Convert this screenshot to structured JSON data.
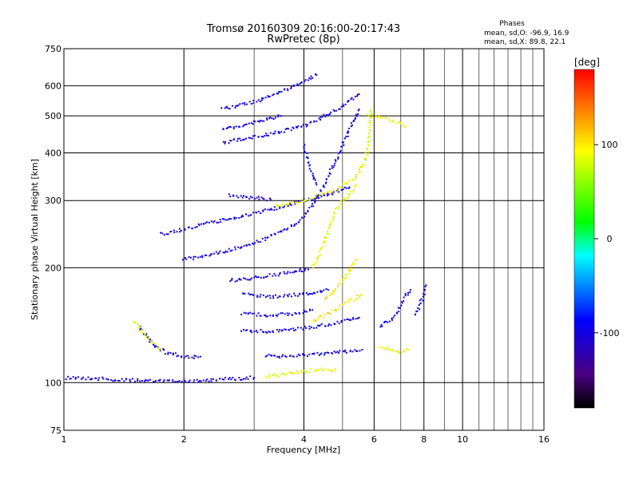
{
  "chart_data": {
    "type": "scatter",
    "title": "Tromsø 20160309 20:16:00-20:17:43",
    "subtitle": "RwPretec (8p)",
    "xlabel": "Frequency [MHz]",
    "ylabel": "Stationary phase Virtual Height [km]",
    "x_scale": "log",
    "y_scale": "log",
    "xlim": [
      1,
      16
    ],
    "ylim": [
      75,
      750
    ],
    "x_ticks": [
      1,
      2,
      4,
      6,
      8,
      10,
      16
    ],
    "y_ticks": [
      75,
      100,
      200,
      300,
      400,
      500,
      600,
      750
    ],
    "x_minor_grid": [
      3,
      5,
      7,
      9,
      11,
      12,
      13,
      14,
      15
    ],
    "grid": true,
    "phase_stats": {
      "heading": "Phases",
      "o_line": "mean, sd,O: -96.9, 16.9",
      "x_line": "mean, sd,X:  89.8, 22.1"
    },
    "colorbar": {
      "label": "[deg]",
      "range": [
        -180,
        180
      ],
      "ticks": [
        100,
        0,
        -100
      ],
      "colormap": "rainbow",
      "colors": [
        "#000000",
        "#4b0082",
        "#0000ff",
        "#00ffff",
        "#00ff00",
        "#ffff00",
        "#ff8000",
        "#ff0000"
      ]
    },
    "series": [
      {
        "trace": "o",
        "phase": -100,
        "points": [
          [
            1.0,
            103
          ],
          [
            1.1,
            103
          ],
          [
            1.3,
            102
          ],
          [
            1.6,
            101
          ],
          [
            2.0,
            101
          ],
          [
            2.5,
            102
          ],
          [
            3.0,
            103
          ]
        ]
      },
      {
        "trace": "x",
        "phase": 90,
        "points": [
          [
            3.2,
            104
          ],
          [
            3.6,
            105
          ],
          [
            4.0,
            107
          ],
          [
            4.4,
            108
          ],
          [
            4.8,
            108
          ]
        ]
      },
      {
        "trace": "o",
        "phase": -100,
        "points": [
          [
            1.55,
            140
          ],
          [
            1.65,
            128
          ],
          [
            1.8,
            120
          ],
          [
            2.0,
            117
          ],
          [
            2.2,
            117
          ]
        ]
      },
      {
        "trace": "x",
        "phase": 80,
        "points": [
          [
            1.5,
            145
          ],
          [
            1.6,
            132
          ],
          [
            1.75,
            122
          ]
        ]
      },
      {
        "trace": "o",
        "phase": -100,
        "points": [
          [
            1.75,
            245
          ],
          [
            2.0,
            252
          ],
          [
            2.3,
            262
          ],
          [
            2.8,
            272
          ],
          [
            3.2,
            282
          ],
          [
            3.6,
            290
          ],
          [
            4.0,
            300
          ],
          [
            4.6,
            312
          ],
          [
            5.2,
            325
          ]
        ]
      },
      {
        "trace": "x",
        "phase": 90,
        "points": [
          [
            3.4,
            290
          ],
          [
            3.8,
            296
          ],
          [
            4.2,
            305
          ],
          [
            4.8,
            320
          ],
          [
            5.4,
            345
          ],
          [
            5.7,
            380
          ],
          [
            5.8,
            420
          ],
          [
            5.85,
            470
          ],
          [
            5.9,
            520
          ]
        ]
      },
      {
        "trace": "o",
        "phase": -100,
        "points": [
          [
            2.5,
            520
          ],
          [
            3.0,
            545
          ],
          [
            3.5,
            575
          ],
          [
            3.9,
            610
          ],
          [
            4.3,
            640
          ]
        ]
      },
      {
        "trace": "o",
        "phase": -100,
        "points": [
          [
            2.5,
            460
          ],
          [
            3.0,
            480
          ],
          [
            3.5,
            500
          ]
        ]
      },
      {
        "trace": "o",
        "phase": -100,
        "points": [
          [
            2.5,
            425
          ],
          [
            3.0,
            440
          ],
          [
            3.5,
            455
          ],
          [
            4.0,
            470
          ],
          [
            4.5,
            500
          ],
          [
            5.0,
            530
          ],
          [
            5.5,
            570
          ]
        ]
      },
      {
        "trace": "o",
        "phase": -100,
        "points": [
          [
            2.0,
            210
          ],
          [
            2.5,
            220
          ],
          [
            3.0,
            232
          ],
          [
            3.5,
            248
          ],
          [
            3.9,
            265
          ],
          [
            4.2,
            290
          ],
          [
            4.5,
            330
          ],
          [
            4.8,
            380
          ],
          [
            5.0,
            420
          ],
          [
            5.3,
            480
          ],
          [
            5.5,
            520
          ]
        ]
      },
      {
        "trace": "o",
        "phase": -100,
        "points": [
          [
            2.6,
            185
          ],
          [
            3.0,
            188
          ],
          [
            3.4,
            192
          ],
          [
            3.8,
            196
          ],
          [
            4.1,
            198
          ]
        ]
      },
      {
        "trace": "o",
        "phase": -100,
        "points": [
          [
            2.8,
            170
          ],
          [
            3.3,
            168
          ],
          [
            3.8,
            170
          ],
          [
            4.2,
            172
          ],
          [
            4.6,
            175
          ]
        ]
      },
      {
        "trace": "o",
        "phase": -100,
        "points": [
          [
            2.8,
            152
          ],
          [
            3.3,
            150
          ],
          [
            3.8,
            152
          ],
          [
            4.2,
            155
          ]
        ]
      },
      {
        "trace": "o",
        "phase": -100,
        "points": [
          [
            2.8,
            137
          ],
          [
            3.3,
            136
          ],
          [
            3.8,
            138
          ],
          [
            4.2,
            140
          ],
          [
            4.6,
            142
          ],
          [
            5.0,
            145
          ],
          [
            5.5,
            148
          ]
        ]
      },
      {
        "trace": "o",
        "phase": -100,
        "points": [
          [
            3.2,
            118
          ],
          [
            3.6,
            117
          ],
          [
            4.0,
            118
          ],
          [
            4.4,
            119
          ],
          [
            4.8,
            120
          ],
          [
            5.2,
            121
          ],
          [
            5.6,
            122
          ]
        ]
      },
      {
        "trace": "x",
        "phase": 90,
        "points": [
          [
            4.2,
            200
          ],
          [
            4.4,
            220
          ],
          [
            4.6,
            250
          ],
          [
            4.8,
            280
          ],
          [
            5.0,
            300
          ],
          [
            5.2,
            310
          ],
          [
            5.4,
            330
          ]
        ]
      },
      {
        "trace": "x",
        "phase": 100,
        "points": [
          [
            4.5,
            165
          ],
          [
            4.8,
            175
          ],
          [
            5.0,
            185
          ],
          [
            5.2,
            195
          ],
          [
            5.4,
            210
          ]
        ]
      },
      {
        "trace": "x",
        "phase": 100,
        "points": [
          [
            4.2,
            145
          ],
          [
            4.5,
            150
          ],
          [
            4.8,
            155
          ],
          [
            5.0,
            160
          ],
          [
            5.3,
            165
          ],
          [
            5.6,
            170
          ]
        ]
      },
      {
        "trace": "o",
        "phase": -100,
        "points": [
          [
            6.2,
            140
          ],
          [
            6.5,
            145
          ],
          [
            6.8,
            150
          ],
          [
            7.0,
            160
          ],
          [
            7.2,
            170
          ],
          [
            7.4,
            175
          ]
        ]
      },
      {
        "trace": "o",
        "phase": -100,
        "points": [
          [
            7.6,
            150
          ],
          [
            7.8,
            160
          ],
          [
            8.0,
            170
          ],
          [
            8.1,
            180
          ]
        ]
      },
      {
        "trace": "x",
        "phase": 90,
        "points": [
          [
            6.2,
            125
          ],
          [
            6.6,
            122
          ],
          [
            7.0,
            120
          ],
          [
            7.3,
            122
          ]
        ]
      },
      {
        "trace": "x",
        "phase": 90,
        "points": [
          [
            5.8,
            505
          ],
          [
            6.5,
            490
          ],
          [
            7.2,
            470
          ]
        ]
      },
      {
        "trace": "o",
        "phase": -90,
        "points": [
          [
            4.0,
            420
          ],
          [
            4.1,
            380
          ],
          [
            4.2,
            350
          ],
          [
            4.3,
            330
          ]
        ]
      },
      {
        "trace": "o",
        "phase": -100,
        "points": [
          [
            2.6,
            310
          ],
          [
            3.0,
            305
          ],
          [
            3.3,
            302
          ]
        ]
      }
    ]
  }
}
